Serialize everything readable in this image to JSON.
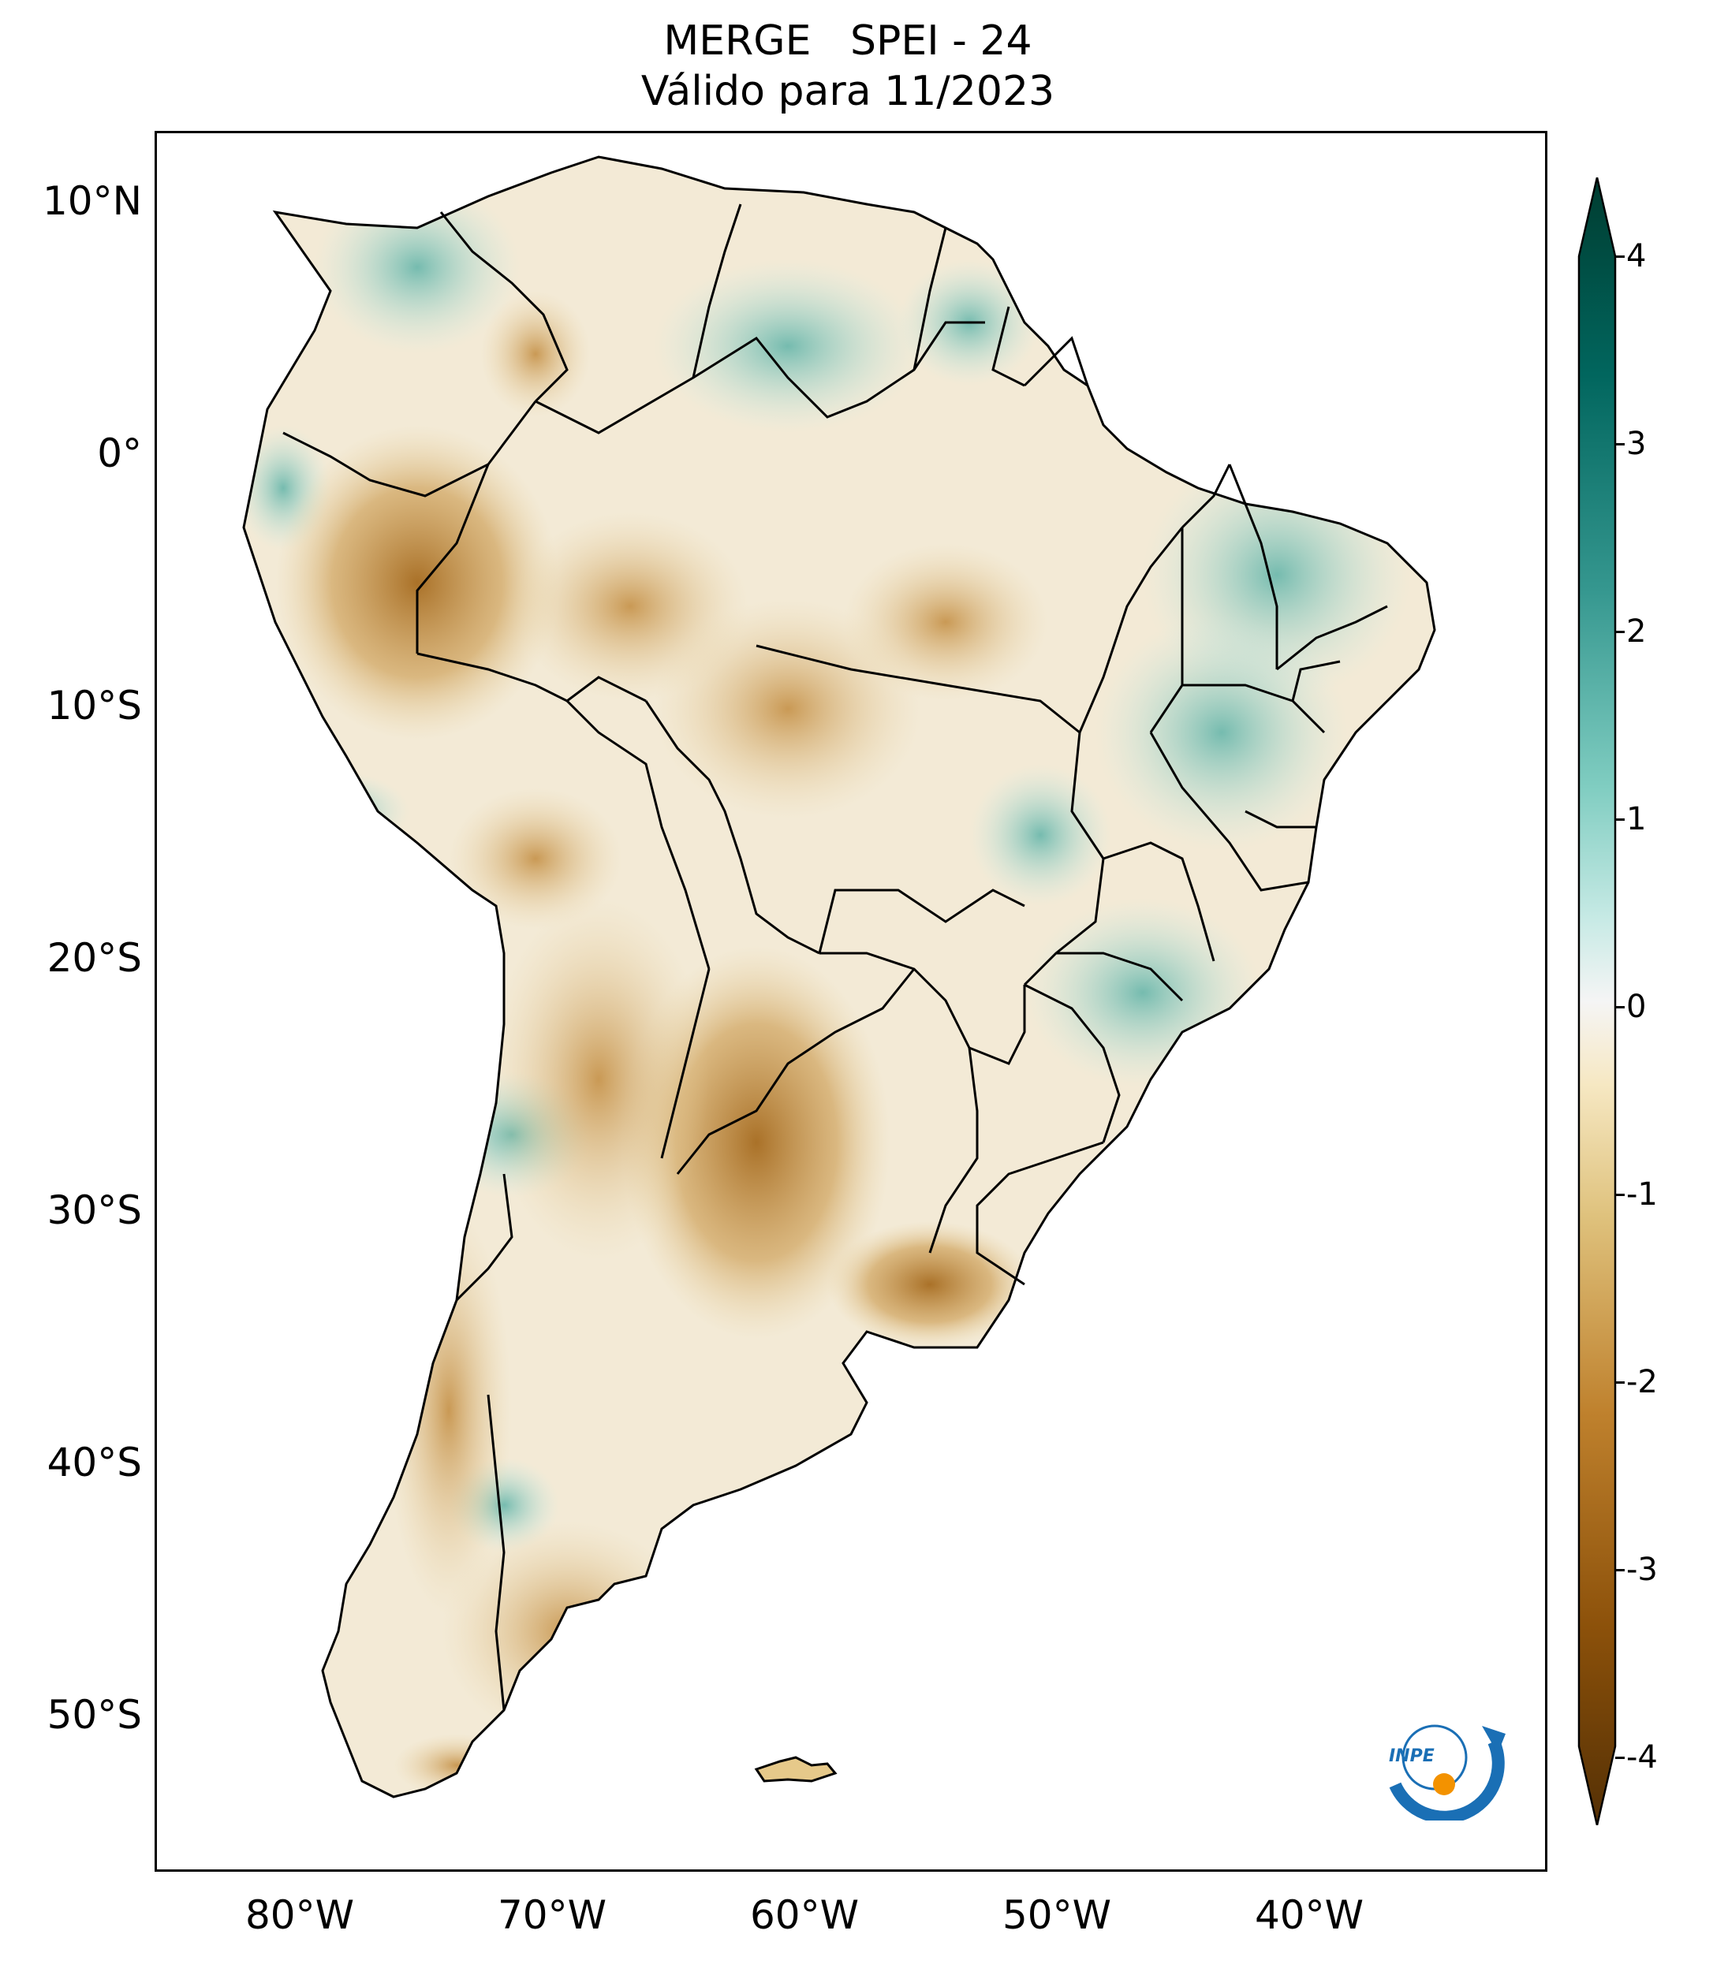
{
  "title": {
    "line1": "MERGE   SPEI - 24",
    "line2": "Válido para 11/2023"
  },
  "axes": {
    "lat_labels": [
      "10°N",
      "0°",
      "10°S",
      "20°S",
      "30°S",
      "40°S",
      "50°S"
    ],
    "lon_labels": [
      "80°W",
      "70°W",
      "60°W",
      "50°W",
      "40°W"
    ]
  },
  "colorbar": {
    "ticks": [
      "4",
      "3",
      "2",
      "1",
      "0",
      "-1",
      "-2",
      "-3",
      "-4"
    ],
    "min": -4,
    "max": 4,
    "extend": "both",
    "colormap": "BrBG",
    "colors": {
      "very_dry": "#543005",
      "dry": "#bf812d",
      "slightly_dry": "#f6e8c3",
      "neutral": "#f5f5f5",
      "slightly_wet": "#c7eae5",
      "wet": "#35978f",
      "very_wet": "#003c30"
    }
  },
  "logo": {
    "text": "INPE",
    "colors": {
      "ring": "#1a6fb5",
      "dot": "#f39200"
    }
  }
}
